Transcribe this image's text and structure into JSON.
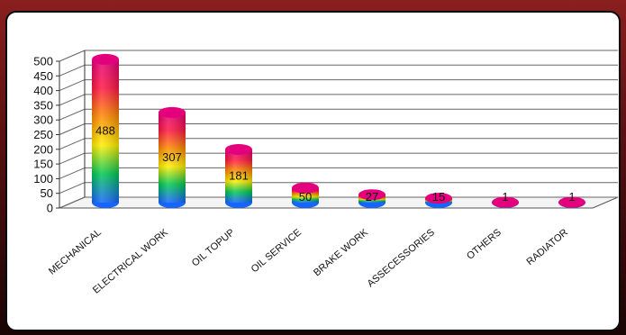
{
  "chart_data": {
    "type": "bar",
    "style": "3d-cylinder",
    "categories": [
      "MECHANICAL",
      "ELECTRICAL WORK",
      "OIL TOPUP",
      "OIL SERVICE",
      "BRAKE WORK",
      "ASSECESSORIES",
      "OTHERS",
      "RADIATOR"
    ],
    "values": [
      488,
      307,
      181,
      50,
      27,
      15,
      1,
      1
    ],
    "ylim": [
      0,
      500
    ],
    "yticks": [
      0,
      50,
      100,
      150,
      200,
      250,
      300,
      350,
      400,
      450,
      500
    ],
    "title": "",
    "xlabel": "",
    "ylabel": "",
    "grid": true,
    "legend": "none",
    "bar_gradient": [
      "#1565ff",
      "#00c853",
      "#ffee00",
      "#ff8c00",
      "#ff1744",
      "#e4007c"
    ]
  }
}
